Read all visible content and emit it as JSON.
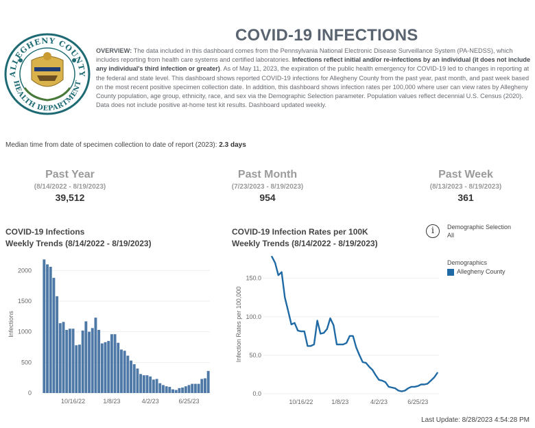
{
  "logo": {
    "arc_text": "ALLEGHENY COUNTY",
    "bottom_text": "HEALTH DEPARTMENT",
    "colors": {
      "ring": "#1d6a73",
      "gold": "#b98a2a",
      "shield": "#d9b24c"
    }
  },
  "title": "COVID-19 INFECTIONS",
  "overview": {
    "label": "OVERVIEW:",
    "text1": " The data included in this dashboard comes from the Pennsylvania National Electronic Disease Surveillance System (PA-NEDSS), which includes reporting from health care systems and certified laboratories. ",
    "bold": "Infections reflect initial and/or re-infections by an individual (it does not include any individual's third infection or greater)",
    "text2": ".  As of May 11, 2023, the expiration of the public health emergency for COVID-19 led to changes in reporting at the federal and state level. This dashboard shows reported COVID-19 infections for Allegheny County from the past year, past month, and past week based on the most recent positive specimen collection date. In addition, this dashboard shows infection rates per 100,000 where user can view rates by Allegheny County population, age group, ethnicity, race, and sex via the Demographic Selection parameter. Population values reflect decennial U.S. Census (2020). Data does not include positive at-home test kit results. Dashboard updated weekly."
  },
  "median": {
    "label": "Median time from date of specimen collection to date of report (2023): ",
    "value": "2.3 days"
  },
  "kpis": [
    {
      "label": "Past Year",
      "range": "(8/14/2022 - 8/19/2023)",
      "value": "39,512"
    },
    {
      "label": "Past Month",
      "range": "(7/23/2023 - 8/19/2023)",
      "value": "954"
    },
    {
      "label": "Past Week",
      "range": "(8/13/2023 - 8/19/2023)",
      "value": "361"
    }
  ],
  "demographic_selection": {
    "label": "Demographic Selection",
    "value": "All",
    "icon": "info-icon"
  },
  "legend": {
    "title": "Demographics",
    "items": [
      {
        "label": "Allegheny County",
        "color": "#1f6aa5"
      }
    ]
  },
  "last_update": "Last Update: 8/28/2023 4:54:28 PM",
  "chart_data": [
    {
      "type": "bar",
      "title": "COVID-19 Infections",
      "subtitle": "Weekly Trends (8/14/2022 - 8/19/2023)",
      "ylabel": "Infections",
      "ylim": [
        0,
        2250
      ],
      "yticks": [
        0,
        500,
        1000,
        1500,
        2000
      ],
      "xticks": [
        "10/16/22",
        "1/8/23",
        "4/2/23",
        "6/25/23"
      ],
      "xtick_index": [
        9,
        21,
        33,
        45
      ],
      "color": "#4e79a7",
      "grid": true,
      "values": [
        2180,
        2100,
        2060,
        1880,
        1580,
        1140,
        1160,
        1030,
        1050,
        1050,
        780,
        790,
        1020,
        1170,
        1000,
        1060,
        1230,
        1030,
        810,
        830,
        850,
        960,
        960,
        820,
        710,
        690,
        610,
        530,
        470,
        400,
        310,
        290,
        290,
        270,
        220,
        230,
        160,
        130,
        110,
        100,
        60,
        50,
        80,
        90,
        110,
        130,
        150,
        150,
        150,
        230,
        240,
        360
      ]
    },
    {
      "type": "line",
      "title": "COVID-19 Infection Rates per 100K",
      "subtitle": "Weekly Trends (8/14/2022 - 8/19/2023)",
      "ylabel": "Infection Rates per 100,000",
      "ylim": [
        0,
        180
      ],
      "yticks": [
        0.0,
        50.0,
        100.0,
        150.0
      ],
      "xticks": [
        "10/16/22",
        "1/8/23",
        "4/2/23",
        "6/25/23"
      ],
      "xtick_index": [
        9,
        21,
        33,
        45
      ],
      "series": [
        {
          "name": "Allegheny County",
          "color": "#1f6aa5",
          "values": [
            178,
            170,
            154,
            158,
            125,
            108,
            90,
            92,
            82,
            81,
            81,
            62,
            62,
            64,
            95,
            78,
            79,
            84,
            98,
            89,
            64,
            64,
            64,
            66,
            75,
            75,
            60,
            50,
            41,
            40,
            35,
            31,
            24,
            18,
            17,
            15,
            9,
            8,
            7,
            4,
            3,
            4,
            7,
            9,
            9,
            10,
            12,
            12,
            13,
            17,
            21,
            27
          ]
        }
      ]
    }
  ]
}
